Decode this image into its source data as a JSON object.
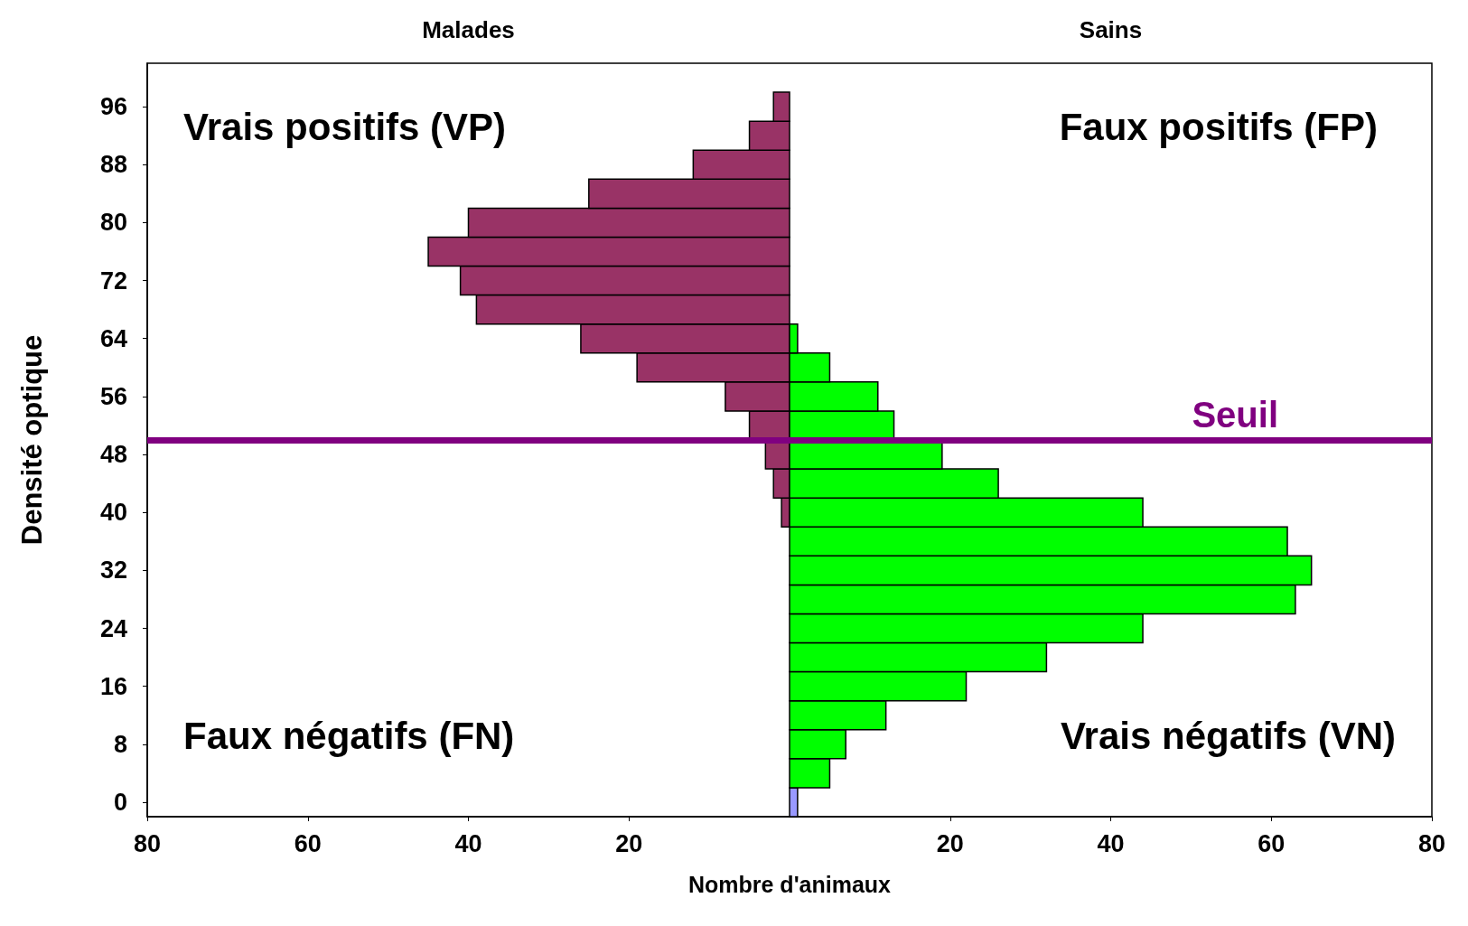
{
  "chart_data": {
    "type": "bar",
    "orientation": "horizontal",
    "xlabel": "Nombre d'animaux",
    "ylabel": "Densité optique",
    "x": [
      0,
      4,
      8,
      12,
      16,
      20,
      24,
      28,
      32,
      36,
      40,
      44,
      48,
      52,
      56,
      60,
      64,
      68,
      72,
      76,
      80,
      84,
      88,
      92,
      96
    ],
    "series": [
      {
        "color": "#993366",
        "values": [
          null,
          null,
          null,
          null,
          null,
          null,
          null,
          null,
          null,
          null,
          -1,
          -2,
          -3,
          -5,
          -8,
          -19,
          -26,
          -39,
          -41,
          -45,
          -40,
          -25,
          -12,
          -5,
          -2
        ]
      },
      {
        "color": "#00ff00",
        "colors": [
          "#9999ff",
          null,
          null,
          null,
          null,
          null,
          null,
          null,
          null,
          null,
          null,
          null,
          null,
          null,
          null,
          null,
          null,
          null,
          null,
          null,
          null,
          null,
          null,
          null,
          null
        ],
        "values": [
          1,
          5,
          7,
          12,
          22,
          32,
          44,
          63,
          65,
          62,
          44,
          26,
          19,
          13,
          11,
          5,
          1,
          null,
          null,
          null,
          null,
          null,
          null,
          null,
          null
        ]
      }
    ],
    "xlim": [
      -80,
      80
    ],
    "xticks": [
      {
        "value": -80,
        "label": "80"
      },
      {
        "value": -60,
        "label": "60"
      },
      {
        "value": -40,
        "label": "40"
      },
      {
        "value": -20,
        "label": "20"
      },
      20,
      40,
      60,
      80
    ],
    "ylim": [
      -2,
      102
    ],
    "yticks": [
      0,
      8,
      16,
      24,
      32,
      40,
      48,
      56,
      64,
      72,
      80,
      88,
      96
    ],
    "ref_lines": [
      {
        "axis": "y",
        "value": 50,
        "label": "Seuil",
        "color": "#800080"
      }
    ],
    "annotations": [
      "Vrais positifs (VP)",
      "Faux positifs (FP)",
      "Faux négatifs (FN)",
      "Vrais négatifs (VN)",
      "Malades",
      "Sains"
    ],
    "grid": false
  }
}
